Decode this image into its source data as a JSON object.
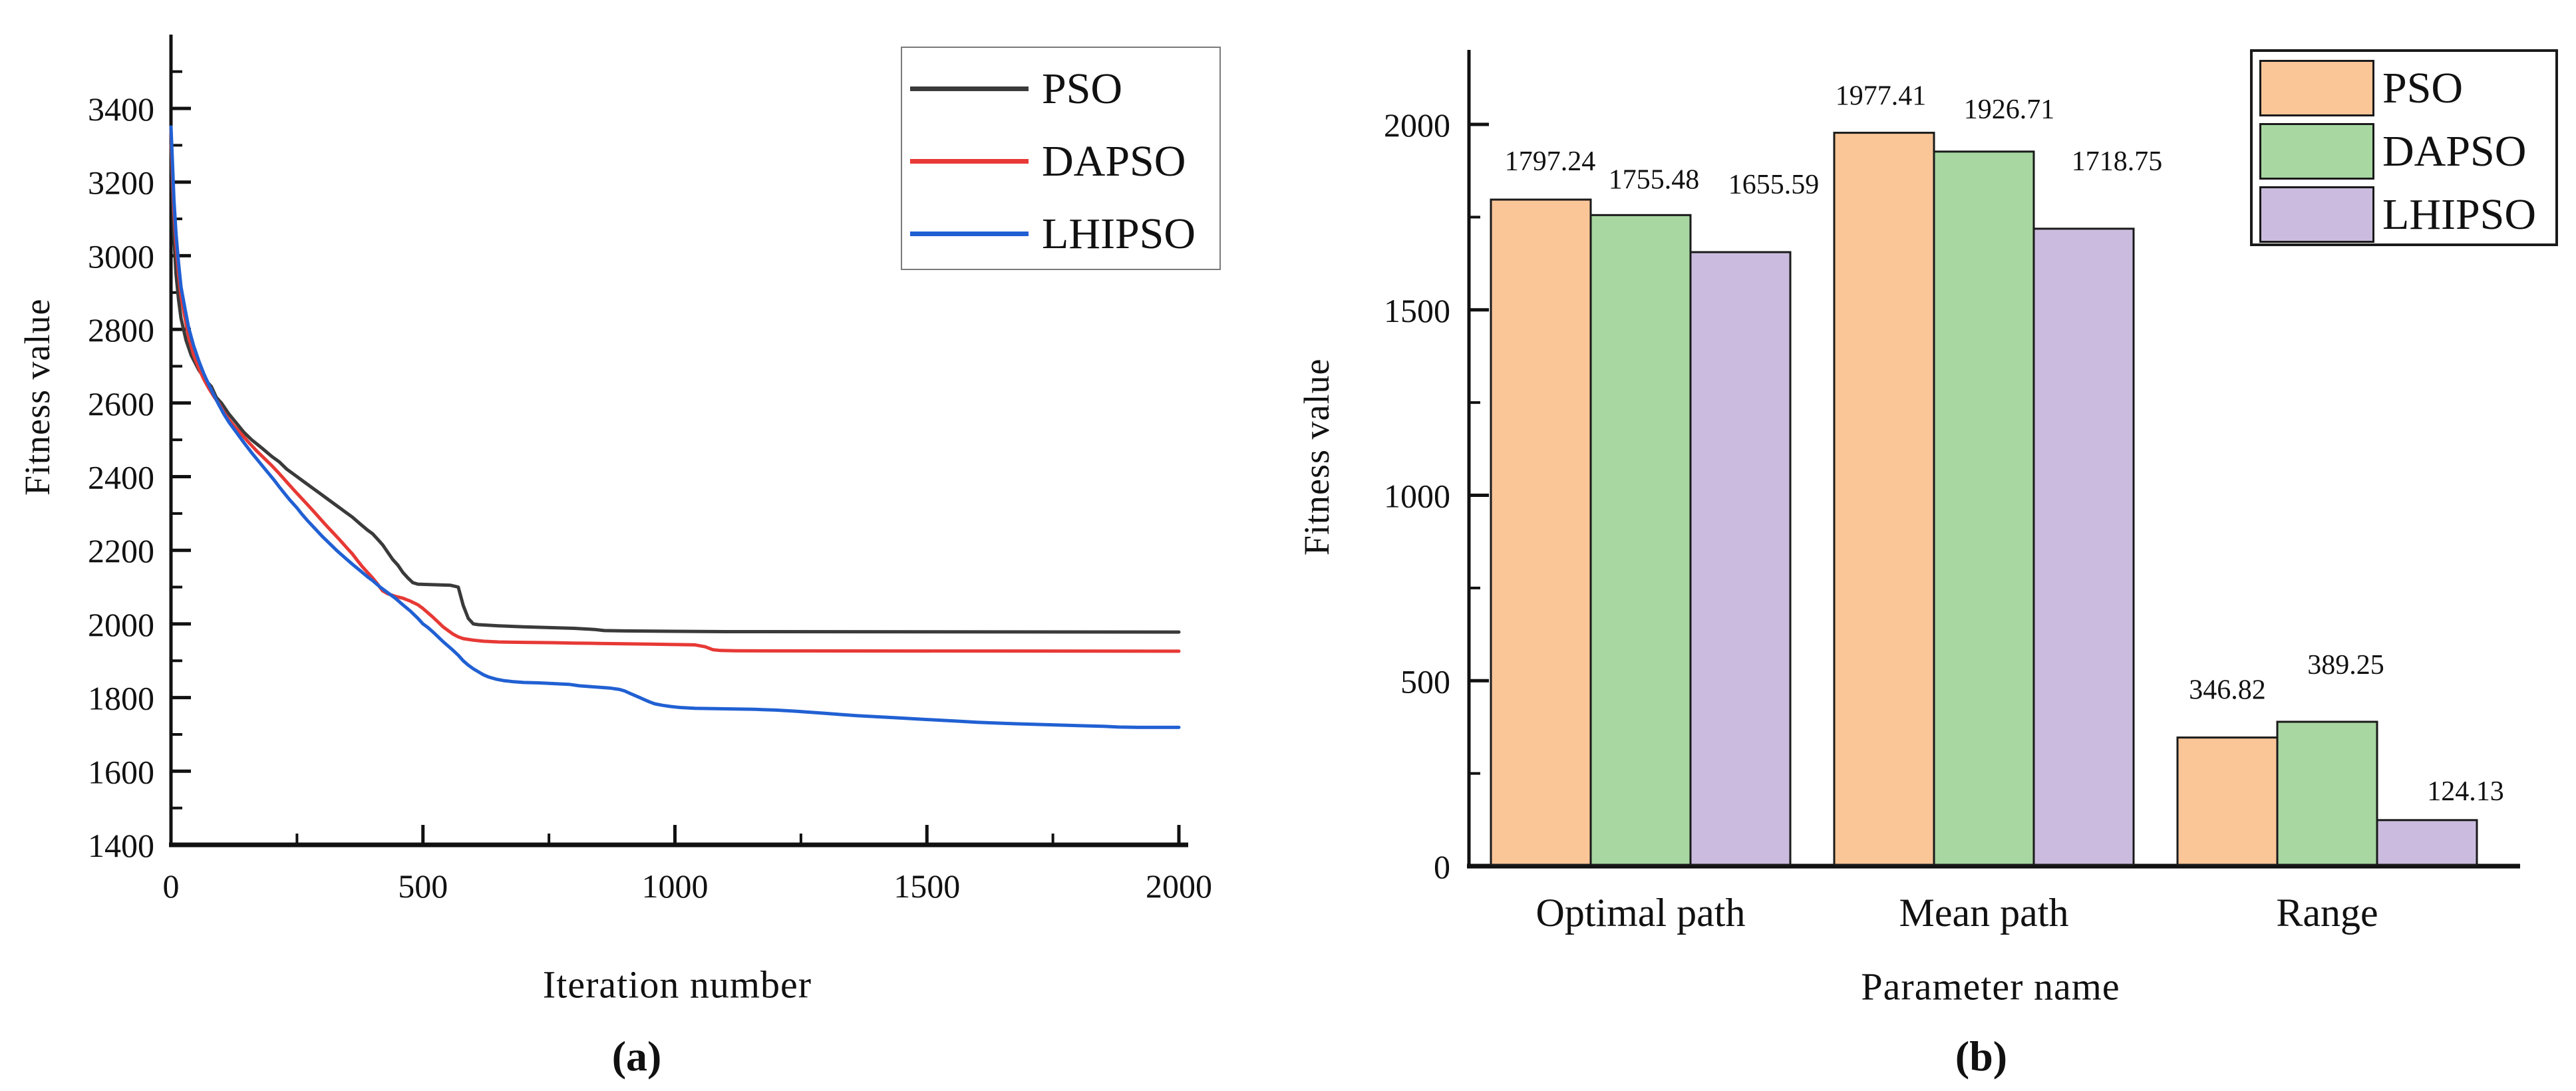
{
  "figure": {
    "background": "#ffffff",
    "panel_count": 2
  },
  "chart_data": [
    {
      "type": "line",
      "panel": "a",
      "caption": "(a)",
      "xlabel": "Iteration number",
      "ylabel": "Fitness value",
      "xlim": [
        0,
        2040
      ],
      "ylim": [
        1400,
        3600
      ],
      "xticks": [
        0,
        500,
        1000,
        1500,
        2000
      ],
      "xticks_minor": [
        250,
        750,
        1250,
        1750
      ],
      "yticks": [
        1400,
        1600,
        1800,
        2000,
        2200,
        2400,
        2600,
        2800,
        3000,
        3200,
        3400
      ],
      "yticks_minor": [
        1500,
        1700,
        1900,
        2100,
        2300,
        2500,
        2700,
        2900,
        3100,
        3300,
        3500
      ],
      "grid": false,
      "legend_position": "top-right",
      "series": [
        {
          "name": "PSO",
          "color": "#3a3a3a",
          "final_value": 1978,
          "points": [
            [
              0,
              3300
            ],
            [
              3,
              3180
            ],
            [
              6,
              3050
            ],
            [
              10,
              2950
            ],
            [
              15,
              2880
            ],
            [
              20,
              2830
            ],
            [
              30,
              2770
            ],
            [
              40,
              2730
            ],
            [
              55,
              2690
            ],
            [
              70,
              2660
            ],
            [
              80,
              2645
            ],
            [
              90,
              2615
            ],
            [
              100,
              2600
            ],
            [
              115,
              2570
            ],
            [
              130,
              2545
            ],
            [
              145,
              2520
            ],
            [
              160,
              2500
            ],
            [
              180,
              2478
            ],
            [
              200,
              2455
            ],
            [
              215,
              2440
            ],
            [
              230,
              2420
            ],
            [
              250,
              2400
            ],
            [
              265,
              2385
            ],
            [
              280,
              2370
            ],
            [
              295,
              2355
            ],
            [
              310,
              2340
            ],
            [
              330,
              2320
            ],
            [
              345,
              2305
            ],
            [
              360,
              2290
            ],
            [
              375,
              2272
            ],
            [
              390,
              2255
            ],
            [
              400,
              2245
            ],
            [
              410,
              2230
            ],
            [
              420,
              2215
            ],
            [
              430,
              2195
            ],
            [
              440,
              2175
            ],
            [
              450,
              2160
            ],
            [
              460,
              2140
            ],
            [
              470,
              2125
            ],
            [
              480,
              2112
            ],
            [
              490,
              2108
            ],
            [
              555,
              2105
            ],
            [
              570,
              2100
            ],
            [
              580,
              2050
            ],
            [
              590,
              2015
            ],
            [
              600,
              2000
            ],
            [
              610,
              1998
            ],
            [
              650,
              1995
            ],
            [
              700,
              1992
            ],
            [
              750,
              1990
            ],
            [
              800,
              1988
            ],
            [
              840,
              1985
            ],
            [
              860,
              1982
            ],
            [
              900,
              1981
            ],
            [
              1000,
              1980
            ],
            [
              1100,
              1979
            ],
            [
              2000,
              1978
            ]
          ]
        },
        {
          "name": "DAPSO",
          "color": "#e73935",
          "final_value": 1926,
          "points": [
            [
              0,
              3340
            ],
            [
              3,
              3220
            ],
            [
              6,
              3120
            ],
            [
              10,
              3030
            ],
            [
              15,
              2950
            ],
            [
              20,
              2890
            ],
            [
              28,
              2830
            ],
            [
              35,
              2780
            ],
            [
              45,
              2730
            ],
            [
              55,
              2695
            ],
            [
              65,
              2665
            ],
            [
              75,
              2640
            ],
            [
              85,
              2618
            ],
            [
              95,
              2598
            ],
            [
              105,
              2575
            ],
            [
              115,
              2555
            ],
            [
              125,
              2538
            ],
            [
              140,
              2515
            ],
            [
              155,
              2492
            ],
            [
              170,
              2470
            ],
            [
              185,
              2450
            ],
            [
              200,
              2430
            ],
            [
              215,
              2408
            ],
            [
              230,
              2385
            ],
            [
              245,
              2362
            ],
            [
              260,
              2340
            ],
            [
              275,
              2318
            ],
            [
              290,
              2295
            ],
            [
              305,
              2272
            ],
            [
              320,
              2250
            ],
            [
              335,
              2228
            ],
            [
              350,
              2205
            ],
            [
              360,
              2190
            ],
            [
              370,
              2172
            ],
            [
              380,
              2155
            ],
            [
              390,
              2140
            ],
            [
              400,
              2125
            ],
            [
              410,
              2108
            ],
            [
              420,
              2090
            ],
            [
              430,
              2082
            ],
            [
              445,
              2075
            ],
            [
              460,
              2070
            ],
            [
              475,
              2062
            ],
            [
              490,
              2052
            ],
            [
              500,
              2042
            ],
            [
              510,
              2030
            ],
            [
              520,
              2018
            ],
            [
              530,
              2005
            ],
            [
              540,
              1992
            ],
            [
              550,
              1982
            ],
            [
              560,
              1972
            ],
            [
              570,
              1965
            ],
            [
              580,
              1960
            ],
            [
              600,
              1956
            ],
            [
              620,
              1953
            ],
            [
              650,
              1951
            ],
            [
              700,
              1950
            ],
            [
              760,
              1949
            ],
            [
              800,
              1948
            ],
            [
              850,
              1947
            ],
            [
              900,
              1946
            ],
            [
              950,
              1945
            ],
            [
              1000,
              1944
            ],
            [
              1040,
              1943
            ],
            [
              1060,
              1938
            ],
            [
              1075,
              1930
            ],
            [
              1090,
              1928
            ],
            [
              1120,
              1927
            ],
            [
              2000,
              1926
            ]
          ]
        },
        {
          "name": "LHIPSO",
          "color": "#2160d3",
          "final_value": 1719,
          "points": [
            [
              0,
              3350
            ],
            [
              3,
              3250
            ],
            [
              6,
              3150
            ],
            [
              10,
              3060
            ],
            [
              15,
              2980
            ],
            [
              20,
              2915
            ],
            [
              28,
              2855
            ],
            [
              35,
              2805
            ],
            [
              45,
              2755
            ],
            [
              55,
              2715
            ],
            [
              65,
              2680
            ],
            [
              75,
              2650
            ],
            [
              85,
              2622
            ],
            [
              95,
              2595
            ],
            [
              105,
              2570
            ],
            [
              115,
              2548
            ],
            [
              130,
              2520
            ],
            [
              145,
              2492
            ],
            [
              160,
              2465
            ],
            [
              175,
              2440
            ],
            [
              190,
              2415
            ],
            [
              205,
              2390
            ],
            [
              215,
              2372
            ],
            [
              225,
              2355
            ],
            [
              235,
              2338
            ],
            [
              250,
              2315
            ],
            [
              260,
              2298
            ],
            [
              270,
              2282
            ],
            [
              285,
              2260
            ],
            [
              300,
              2238
            ],
            [
              315,
              2218
            ],
            [
              330,
              2198
            ],
            [
              345,
              2180
            ],
            [
              360,
              2162
            ],
            [
              375,
              2145
            ],
            [
              390,
              2128
            ],
            [
              400,
              2118
            ],
            [
              415,
              2100
            ],
            [
              430,
              2085
            ],
            [
              445,
              2070
            ],
            [
              460,
              2052
            ],
            [
              475,
              2035
            ],
            [
              490,
              2015
            ],
            [
              500,
              2000
            ],
            [
              510,
              1990
            ],
            [
              520,
              1978
            ],
            [
              530,
              1965
            ],
            [
              540,
              1952
            ],
            [
              550,
              1940
            ],
            [
              560,
              1928
            ],
            [
              570,
              1915
            ],
            [
              580,
              1900
            ],
            [
              590,
              1888
            ],
            [
              600,
              1878
            ],
            [
              610,
              1870
            ],
            [
              620,
              1862
            ],
            [
              630,
              1856
            ],
            [
              645,
              1850
            ],
            [
              660,
              1846
            ],
            [
              680,
              1843
            ],
            [
              700,
              1841
            ],
            [
              730,
              1840
            ],
            [
              760,
              1838
            ],
            [
              790,
              1836
            ],
            [
              810,
              1832
            ],
            [
              830,
              1830
            ],
            [
              850,
              1828
            ],
            [
              870,
              1826
            ],
            [
              890,
              1822
            ],
            [
              900,
              1818
            ],
            [
              910,
              1812
            ],
            [
              920,
              1806
            ],
            [
              930,
              1800
            ],
            [
              940,
              1794
            ],
            [
              950,
              1788
            ],
            [
              960,
              1783
            ],
            [
              975,
              1779
            ],
            [
              990,
              1776
            ],
            [
              1010,
              1773
            ],
            [
              1040,
              1771
            ],
            [
              1080,
              1770
            ],
            [
              1120,
              1769
            ],
            [
              1160,
              1768
            ],
            [
              1200,
              1766
            ],
            [
              1240,
              1763
            ],
            [
              1270,
              1760
            ],
            [
              1300,
              1757
            ],
            [
              1330,
              1754
            ],
            [
              1360,
              1751
            ],
            [
              1400,
              1748
            ],
            [
              1440,
              1745
            ],
            [
              1480,
              1742
            ],
            [
              1520,
              1739
            ],
            [
              1560,
              1736
            ],
            [
              1600,
              1733
            ],
            [
              1650,
              1730
            ],
            [
              1700,
              1728
            ],
            [
              1750,
              1726
            ],
            [
              1800,
              1724
            ],
            [
              1850,
              1722
            ],
            [
              1880,
              1720
            ],
            [
              1920,
              1719
            ],
            [
              2000,
              1719
            ]
          ]
        }
      ]
    },
    {
      "type": "bar",
      "panel": "b",
      "caption": "(b)",
      "xlabel": "Parameter name",
      "ylabel": "Fitness value",
      "categories": [
        "Optimal path",
        "Mean path",
        "Range"
      ],
      "ylim": [
        0,
        2200
      ],
      "yticks": [
        0,
        500,
        1000,
        1500,
        2000
      ],
      "yticks_minor": [
        250,
        750,
        1250,
        1750
      ],
      "grid": false,
      "legend_position": "top-right",
      "series": [
        {
          "name": "PSO",
          "color": "#fac698",
          "edge_color": "#1a1a1a",
          "values": [
            1797.24,
            1977.41,
            346.82
          ]
        },
        {
          "name": "DAPSO",
          "color": "#a8d7a2",
          "edge_color": "#1a1a1a",
          "values": [
            1755.48,
            1926.71,
            389.25
          ]
        },
        {
          "name": "LHIPSO",
          "color": "#cbbcdf",
          "edge_color": "#1a1a1a",
          "values": [
            1655.59,
            1718.75,
            124.13
          ]
        }
      ]
    }
  ]
}
